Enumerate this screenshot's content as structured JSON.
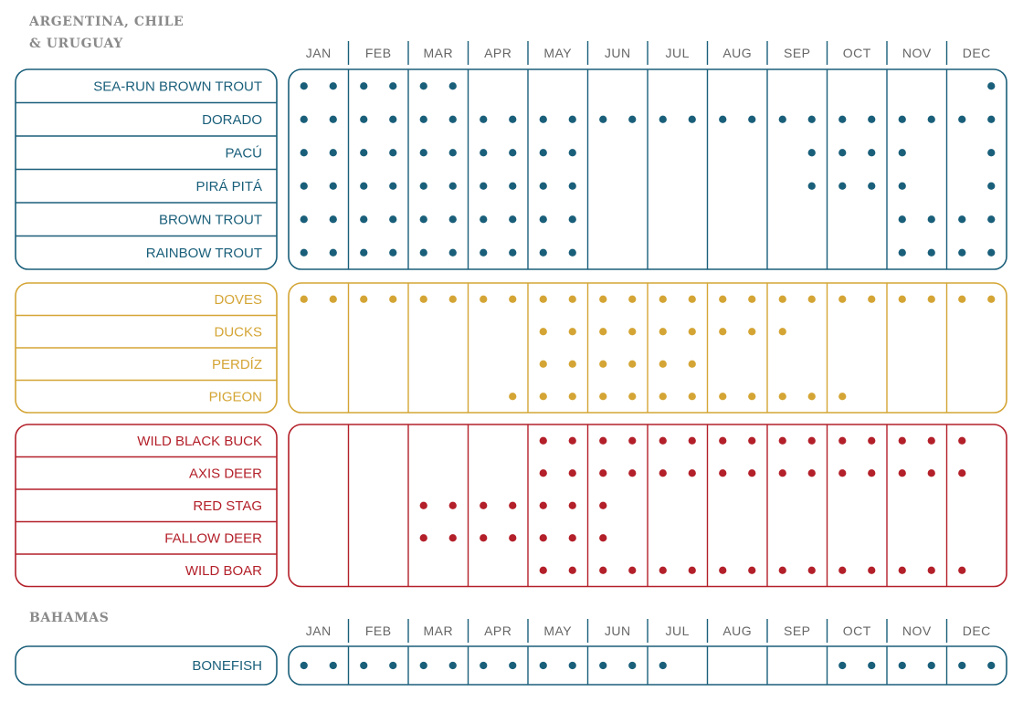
{
  "colors": {
    "fish": "#1a5f7a",
    "bird": "#d4a535",
    "game": "#b3202a",
    "month_text": "#666666",
    "region_text": "#8a8a8a"
  },
  "chart_data": {
    "type": "table",
    "months": [
      "JAN",
      "FEB",
      "MAR",
      "APR",
      "MAY",
      "JUN",
      "JUL",
      "AUG",
      "SEP",
      "OCT",
      "NOV",
      "DEC"
    ],
    "regions": [
      {
        "name": "ARGENTINA, CHILE",
        "name_line2": "& URUGUAY",
        "groups": [
          {
            "category": "fish",
            "species": [
              {
                "name": "SEA-RUN BROWN TROUT",
                "halves": [
                  1,
                  1,
                  1,
                  1,
                  1,
                  1,
                  0,
                  0,
                  0,
                  0,
                  0,
                  0,
                  0,
                  0,
                  0,
                  0,
                  0,
                  0,
                  0,
                  0,
                  0,
                  0,
                  0,
                  1
                ]
              },
              {
                "name": "DORADO",
                "halves": [
                  1,
                  1,
                  1,
                  1,
                  1,
                  1,
                  1,
                  1,
                  1,
                  1,
                  1,
                  1,
                  1,
                  1,
                  1,
                  1,
                  1,
                  1,
                  1,
                  1,
                  1,
                  1,
                  1,
                  1
                ]
              },
              {
                "name": "PACÚ",
                "halves": [
                  1,
                  1,
                  1,
                  1,
                  1,
                  1,
                  1,
                  1,
                  1,
                  1,
                  0,
                  0,
                  0,
                  0,
                  0,
                  0,
                  0,
                  1,
                  1,
                  1,
                  1,
                  0,
                  0,
                  1
                ]
              },
              {
                "name": "PIRÁ PITÁ",
                "halves": [
                  1,
                  1,
                  1,
                  1,
                  1,
                  1,
                  1,
                  1,
                  1,
                  1,
                  0,
                  0,
                  0,
                  0,
                  0,
                  0,
                  0,
                  1,
                  1,
                  1,
                  1,
                  0,
                  0,
                  1
                ]
              },
              {
                "name": "BROWN TROUT",
                "halves": [
                  1,
                  1,
                  1,
                  1,
                  1,
                  1,
                  1,
                  1,
                  1,
                  1,
                  0,
                  0,
                  0,
                  0,
                  0,
                  0,
                  0,
                  0,
                  0,
                  0,
                  1,
                  1,
                  1,
                  1
                ]
              },
              {
                "name": "RAINBOW TROUT",
                "halves": [
                  1,
                  1,
                  1,
                  1,
                  1,
                  1,
                  1,
                  1,
                  1,
                  1,
                  0,
                  0,
                  0,
                  0,
                  0,
                  0,
                  0,
                  0,
                  0,
                  0,
                  1,
                  1,
                  1,
                  1
                ]
              }
            ]
          },
          {
            "category": "bird",
            "species": [
              {
                "name": "DOVES",
                "halves": [
                  1,
                  1,
                  1,
                  1,
                  1,
                  1,
                  1,
                  1,
                  1,
                  1,
                  1,
                  1,
                  1,
                  1,
                  1,
                  1,
                  1,
                  1,
                  1,
                  1,
                  1,
                  1,
                  1,
                  1
                ]
              },
              {
                "name": "DUCKS",
                "halves": [
                  0,
                  0,
                  0,
                  0,
                  0,
                  0,
                  0,
                  0,
                  1,
                  1,
                  1,
                  1,
                  1,
                  1,
                  1,
                  1,
                  1,
                  0,
                  0,
                  0,
                  0,
                  0,
                  0,
                  0
                ]
              },
              {
                "name": "PERDÍZ",
                "halves": [
                  0,
                  0,
                  0,
                  0,
                  0,
                  0,
                  0,
                  0,
                  1,
                  1,
                  1,
                  1,
                  1,
                  1,
                  0,
                  0,
                  0,
                  0,
                  0,
                  0,
                  0,
                  0,
                  0,
                  0
                ]
              },
              {
                "name": "PIGEON",
                "halves": [
                  0,
                  0,
                  0,
                  0,
                  0,
                  0,
                  0,
                  1,
                  1,
                  1,
                  1,
                  1,
                  1,
                  1,
                  1,
                  1,
                  1,
                  1,
                  1,
                  0,
                  0,
                  0,
                  0,
                  0
                ]
              }
            ]
          },
          {
            "category": "game",
            "species": [
              {
                "name": "WILD BLACK BUCK",
                "halves": [
                  0,
                  0,
                  0,
                  0,
                  0,
                  0,
                  0,
                  0,
                  1,
                  1,
                  1,
                  1,
                  1,
                  1,
                  1,
                  1,
                  1,
                  1,
                  1,
                  1,
                  1,
                  1,
                  1,
                  0
                ]
              },
              {
                "name": "AXIS DEER",
                "halves": [
                  0,
                  0,
                  0,
                  0,
                  0,
                  0,
                  0,
                  0,
                  1,
                  1,
                  1,
                  1,
                  1,
                  1,
                  1,
                  1,
                  1,
                  1,
                  1,
                  1,
                  1,
                  1,
                  1,
                  0
                ]
              },
              {
                "name": "RED STAG",
                "halves": [
                  0,
                  0,
                  0,
                  0,
                  1,
                  1,
                  1,
                  1,
                  1,
                  1,
                  1,
                  0,
                  0,
                  0,
                  0,
                  0,
                  0,
                  0,
                  0,
                  0,
                  0,
                  0,
                  0,
                  0
                ]
              },
              {
                "name": "FALLOW DEER",
                "halves": [
                  0,
                  0,
                  0,
                  0,
                  1,
                  1,
                  1,
                  1,
                  1,
                  1,
                  1,
                  0,
                  0,
                  0,
                  0,
                  0,
                  0,
                  0,
                  0,
                  0,
                  0,
                  0,
                  0,
                  0
                ]
              },
              {
                "name": "WILD BOAR",
                "halves": [
                  0,
                  0,
                  0,
                  0,
                  0,
                  0,
                  0,
                  0,
                  1,
                  1,
                  1,
                  1,
                  1,
                  1,
                  1,
                  1,
                  1,
                  1,
                  1,
                  1,
                  1,
                  1,
                  1,
                  0
                ]
              }
            ]
          }
        ]
      },
      {
        "name": "BAHAMAS",
        "name_line2": "",
        "groups": [
          {
            "category": "fish",
            "species": [
              {
                "name": "BONEFISH",
                "halves": [
                  1,
                  1,
                  1,
                  1,
                  1,
                  1,
                  1,
                  1,
                  1,
                  1,
                  1,
                  1,
                  1,
                  0,
                  0,
                  0,
                  0,
                  0,
                  1,
                  1,
                  1,
                  1,
                  1,
                  1
                ]
              }
            ]
          }
        ]
      }
    ]
  }
}
